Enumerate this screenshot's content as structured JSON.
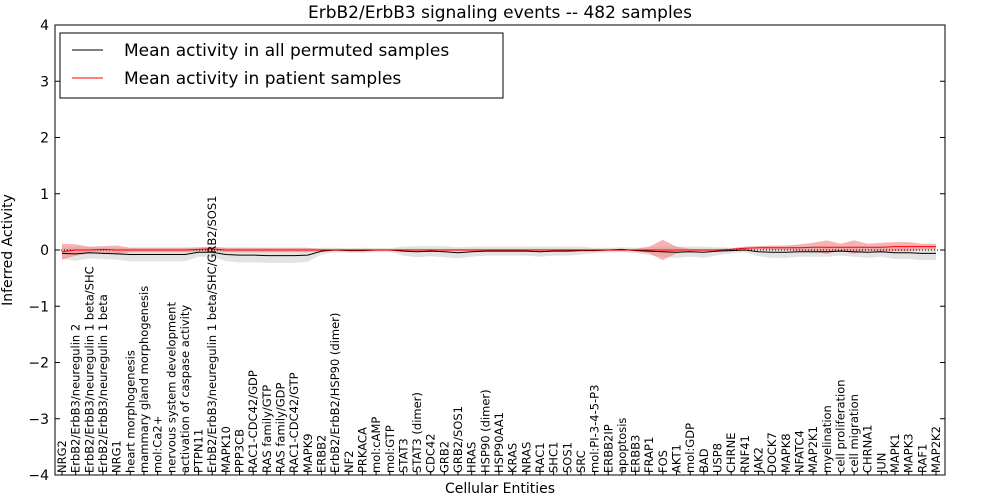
{
  "chart_data": {
    "type": "line",
    "title": "ErbB2/ErbB3 signaling events -- 482 samples",
    "xlabel": "Cellular Entities",
    "ylabel": "Inferred Activity",
    "ylim": [
      -4,
      4
    ],
    "yticks": [
      "−4",
      "−3",
      "−2",
      "−1",
      "0",
      "1",
      "2",
      "3",
      "4"
    ],
    "legend_position": "top-left",
    "categories": [
      "NRG2",
      "ErbB2/ErbB3/neuregulin 2",
      "ErbB2/ErbB3/neuregulin 1 beta/SHC",
      "ErbB2/ErbB3/neuregulin 1 beta",
      "NRG1",
      "heart morphogenesis",
      "mammary gland morphogenesis",
      "mol:Ca2+",
      "nervous system development",
      "activation of caspase activity",
      "PTPN11",
      "ErbB2/ErbB3/neuregulin 1 beta/SHC/GRB2/SOS1",
      "MAPK10",
      "PPP3CB",
      "RAC1-CDC42/GDP",
      "RAS family/GTP",
      "RAS family/GDP",
      "RAC1-CDC42/GTP",
      "MAPK9",
      "ERBB2",
      "ErbB2/ErbB2/HSP90 (dimer)",
      "NF2",
      "PRKACA",
      "mol:cAMP",
      "mol:GTP",
      "STAT3",
      "STAT3 (dimer)",
      "CDC42",
      "GRB2",
      "GRB2/SOS1",
      "HRAS",
      "HSP90 (dimer)",
      "HSP90AA1",
      "KRAS",
      "NRAS",
      "RAC1",
      "SHC1",
      "SOS1",
      "SRC",
      "mol:PI-3-4-5-P3",
      "ERBB2IP",
      "apoptosis",
      "ERBB3",
      "FRAP1",
      "FOS",
      "AKT1",
      "mol:GDP",
      "BAD",
      "USP8",
      "CHRNE",
      "RNF41",
      "JAK2",
      "DOCK7",
      "MAPK8",
      "NFATC4",
      "MAP2K1",
      "myelination",
      "cell proliferation",
      "cell migration",
      "CHRNA1",
      "JUN",
      "MAPK1",
      "MAPK3",
      "RAF1",
      "MAP2K2"
    ],
    "series": [
      {
        "name": "Mean activity in all permuted samples",
        "color": "#000000",
        "band_color": "#cccccc",
        "values": [
          -0.06,
          -0.07,
          -0.05,
          -0.06,
          -0.07,
          -0.08,
          -0.08,
          -0.08,
          -0.08,
          -0.08,
          -0.04,
          -0.04,
          -0.08,
          -0.09,
          -0.09,
          -0.1,
          -0.1,
          -0.1,
          -0.09,
          -0.02,
          0.0,
          -0.01,
          -0.01,
          0.0,
          0.0,
          -0.02,
          -0.03,
          -0.02,
          -0.03,
          -0.05,
          -0.03,
          -0.02,
          -0.02,
          -0.02,
          -0.02,
          -0.03,
          -0.02,
          -0.02,
          -0.01,
          -0.01,
          0.0,
          0.01,
          -0.01,
          -0.02,
          -0.03,
          -0.04,
          -0.03,
          -0.04,
          -0.02,
          -0.01,
          0.0,
          -0.03,
          -0.04,
          -0.04,
          -0.03,
          -0.03,
          -0.03,
          -0.02,
          -0.03,
          -0.04,
          -0.03,
          -0.05,
          -0.05,
          -0.06,
          -0.06
        ],
        "spread": [
          0.1,
          0.12,
          0.1,
          0.1,
          0.1,
          0.12,
          0.12,
          0.12,
          0.12,
          0.12,
          0.08,
          0.08,
          0.12,
          0.13,
          0.13,
          0.13,
          0.13,
          0.13,
          0.12,
          0.06,
          0.04,
          0.04,
          0.05,
          0.03,
          0.03,
          0.08,
          0.1,
          0.09,
          0.1,
          0.1,
          0.09,
          0.08,
          0.08,
          0.08,
          0.08,
          0.09,
          0.08,
          0.08,
          0.07,
          0.05,
          0.04,
          0.04,
          0.05,
          0.07,
          0.09,
          0.1,
          0.09,
          0.1,
          0.07,
          0.05,
          0.04,
          0.08,
          0.1,
          0.1,
          0.09,
          0.09,
          0.09,
          0.08,
          0.09,
          0.1,
          0.09,
          0.11,
          0.11,
          0.12,
          0.12
        ]
      },
      {
        "name": "Mean activity in patient samples",
        "color": "#ff0000",
        "band_color": "#f08080",
        "values": [
          -0.03,
          0.0,
          0.0,
          0.01,
          0.0,
          0.0,
          0.0,
          0.0,
          0.0,
          0.0,
          0.01,
          0.02,
          0.0,
          0.0,
          0.0,
          0.0,
          0.0,
          0.0,
          0.0,
          0.0,
          0.0,
          0.0,
          0.0,
          0.0,
          0.0,
          0.0,
          0.0,
          0.0,
          0.0,
          0.0,
          0.0,
          0.0,
          0.0,
          0.0,
          0.0,
          0.0,
          0.0,
          0.0,
          0.0,
          0.0,
          0.0,
          0.0,
          0.0,
          0.0,
          0.0,
          0.0,
          0.0,
          0.0,
          0.0,
          0.01,
          0.03,
          0.04,
          0.04,
          0.04,
          0.04,
          0.05,
          0.05,
          0.05,
          0.05,
          0.05,
          0.05,
          0.06,
          0.06,
          0.06,
          0.06
        ],
        "spread": [
          0.14,
          0.1,
          0.06,
          0.06,
          0.08,
          0.04,
          0.04,
          0.04,
          0.04,
          0.04,
          0.04,
          0.04,
          0.04,
          0.04,
          0.04,
          0.04,
          0.04,
          0.04,
          0.04,
          0.02,
          0.02,
          0.02,
          0.02,
          0.02,
          0.02,
          0.02,
          0.02,
          0.02,
          0.02,
          0.02,
          0.02,
          0.02,
          0.02,
          0.02,
          0.02,
          0.02,
          0.02,
          0.02,
          0.02,
          0.02,
          0.02,
          0.02,
          0.02,
          0.06,
          0.18,
          0.06,
          0.02,
          0.02,
          0.02,
          0.02,
          0.03,
          0.03,
          0.04,
          0.04,
          0.06,
          0.08,
          0.12,
          0.06,
          0.12,
          0.06,
          0.08,
          0.08,
          0.08,
          0.05,
          0.05
        ]
      }
    ],
    "reference_line": 0
  }
}
